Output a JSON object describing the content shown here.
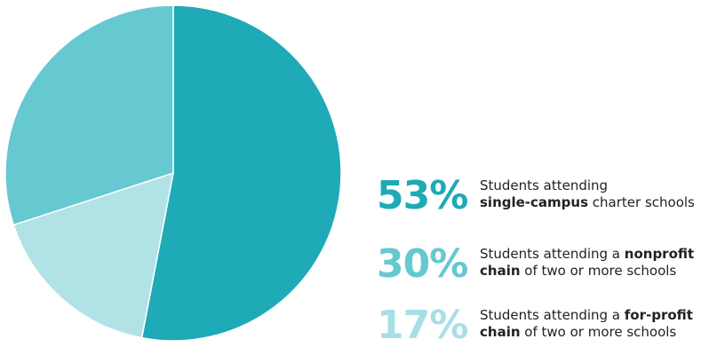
{
  "chart_data": {
    "type": "pie",
    "slices": [
      {
        "value": 53,
        "label": "53%",
        "color": "#1eaab6"
      },
      {
        "value": 17,
        "label": "17%",
        "color": "#b1e2e6"
      },
      {
        "value": 30,
        "label": "30%",
        "color": "#66c8d1"
      }
    ],
    "start": "12 o'clock",
    "direction": "clockwise",
    "legend_placement": "right"
  },
  "legend": [
    {
      "pct": "53%",
      "color": "#1eaab6",
      "line1": "Students attending",
      "line2_bold": "single-campus",
      "line2_rest": " charter schools"
    },
    {
      "pct": "30%",
      "color": "#66c8d1",
      "line1_start": "Students attending a ",
      "line1_bold": "nonprofit",
      "line2_bold": "chain",
      "line2_rest": " of two or more schools"
    },
    {
      "pct": "17%",
      "color": "#a8dfe5",
      "line1_start": "Students attending a ",
      "line1_bold": "for-profit",
      "line2_bold": "chain",
      "line2_rest": " of two or more schools"
    }
  ]
}
